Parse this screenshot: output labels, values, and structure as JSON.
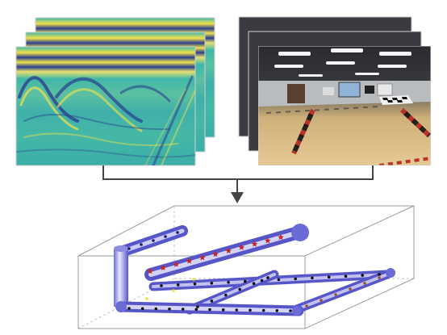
{
  "figure": {
    "inputs": [
      {
        "name": "gpr-radargram-stack",
        "kind": "image-stack",
        "layers": 3
      },
      {
        "name": "camera-image-stack",
        "kind": "image-stack",
        "layers": 3
      }
    ],
    "output": {
      "name": "3d-pipe-reconstruction",
      "kind": "3d-volume"
    },
    "colors": {
      "radargram_base": "#3fb8a8",
      "radargram_band_dark": "#2a3f8f",
      "radargram_band_light": "#f2e24a",
      "floor": "#d9b884",
      "tape_red": "#b8322c",
      "pipe": "#6b6bd6",
      "pipe_highlight": "#e9e9ff",
      "marker_red": "#c0282a",
      "marker_black": "#111111",
      "marker_yellow": "#f0e030",
      "arrow": "#444444"
    },
    "icons": [
      "down-arrow-icon"
    ]
  }
}
